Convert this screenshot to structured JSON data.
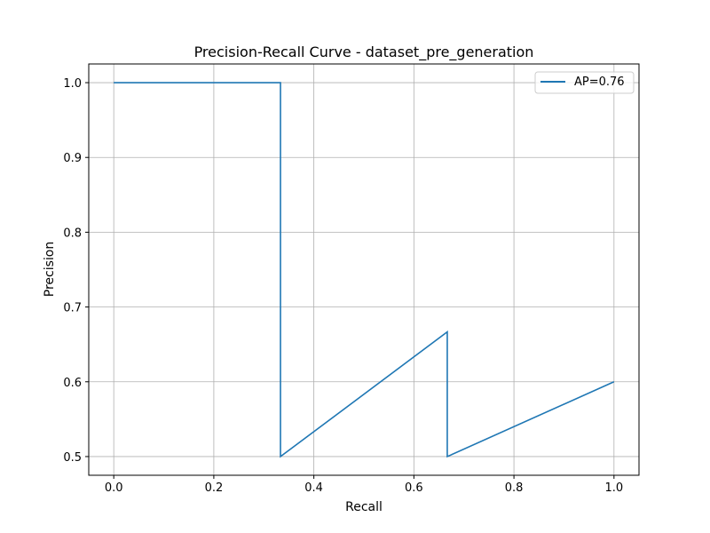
{
  "chart_data": {
    "type": "line",
    "title": "Precision-Recall Curve - dataset_pre_generation",
    "xlabel": "Recall",
    "ylabel": "Precision",
    "xlim": [
      -0.05,
      1.05
    ],
    "ylim": [
      0.475,
      1.025
    ],
    "xticks": [
      0.0,
      0.2,
      0.4,
      0.6,
      0.8,
      1.0
    ],
    "xtick_labels": [
      "0.0",
      "0.2",
      "0.4",
      "0.6",
      "0.8",
      "1.0"
    ],
    "yticks": [
      0.5,
      0.6,
      0.7,
      0.8,
      0.9,
      1.0
    ],
    "ytick_labels": [
      "0.5",
      "0.6",
      "0.7",
      "0.8",
      "0.9",
      "1.0"
    ],
    "grid": true,
    "legend_position": "top-right",
    "series": [
      {
        "name": "AP=0.76",
        "color": "#1f77b4",
        "x": [
          0.0,
          0.3333,
          0.3333,
          0.6667,
          0.6667,
          1.0
        ],
        "y": [
          1.0,
          1.0,
          0.5,
          0.6667,
          0.5,
          0.6
        ]
      }
    ]
  }
}
